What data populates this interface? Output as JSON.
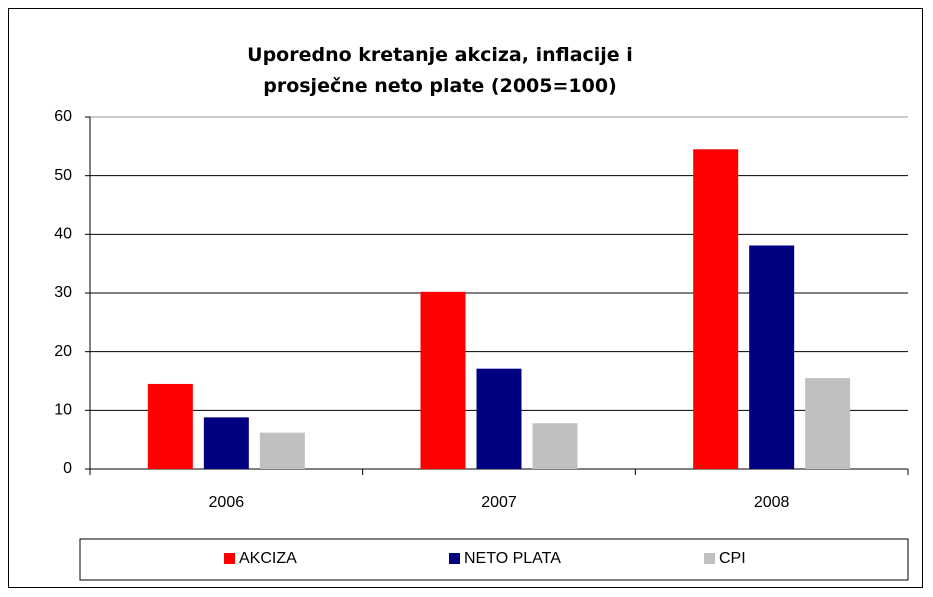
{
  "chart_data": {
    "type": "bar",
    "title": "Uporedno kretanje akciza, inflacije i prosječne neto plate (2005=100)",
    "categories": [
      "2006",
      "2007",
      "2008"
    ],
    "series": [
      {
        "name": "AKCIZA",
        "color": "#ff0000",
        "values": [
          14.5,
          30.2,
          54.5
        ]
      },
      {
        "name": "NETO PLATA",
        "color": "#000080",
        "values": [
          8.8,
          17.1,
          38.1
        ]
      },
      {
        "name": "CPI",
        "color": "#c0c0c0",
        "values": [
          6.2,
          7.8,
          15.5
        ]
      }
    ],
    "ylim": [
      0,
      60
    ],
    "yticks": [
      0,
      10,
      20,
      30,
      40,
      50,
      60
    ],
    "grid": true,
    "legend": "bottom"
  }
}
